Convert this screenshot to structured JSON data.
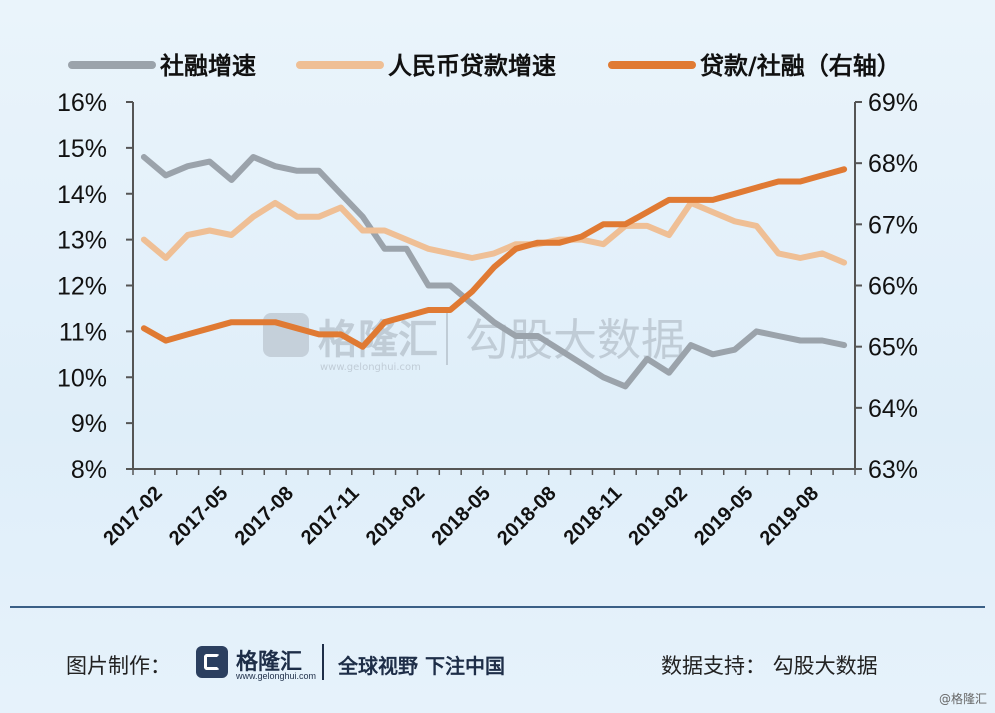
{
  "chart_data": {
    "type": "line",
    "legend_position": "top",
    "grid": false,
    "x_categories": [
      "2017-02",
      "2017-03",
      "2017-04",
      "2017-05",
      "2017-06",
      "2017-07",
      "2017-08",
      "2017-09",
      "2017-10",
      "2017-11",
      "2017-12",
      "2018-01",
      "2018-02",
      "2018-03",
      "2018-04",
      "2018-05",
      "2018-06",
      "2018-07",
      "2018-08",
      "2018-09",
      "2018-10",
      "2018-11",
      "2018-12",
      "2019-01",
      "2019-02",
      "2019-03",
      "2019-04",
      "2019-05",
      "2019-06",
      "2019-07",
      "2019-08",
      "2019-09",
      "2019-10"
    ],
    "x_tick_labels": [
      "2017-02",
      "2017-05",
      "2017-08",
      "2017-11",
      "2018-02",
      "2018-05",
      "2018-08",
      "2018-11",
      "2019-02",
      "2019-05",
      "2019-08"
    ],
    "y_left": {
      "min": 8,
      "max": 16,
      "step": 1,
      "unit": "%"
    },
    "y_right": {
      "min": 63,
      "max": 69,
      "step": 1,
      "unit": "%"
    },
    "series": [
      {
        "name": "社融增速",
        "axis": "left",
        "color": "#9ba3ab",
        "values": [
          14.8,
          14.4,
          14.6,
          14.7,
          14.3,
          14.8,
          14.6,
          14.5,
          14.5,
          14.0,
          13.5,
          12.8,
          12.8,
          12.0,
          12.0,
          11.6,
          11.2,
          10.9,
          10.9,
          10.6,
          10.3,
          10.0,
          9.8,
          10.4,
          10.1,
          10.7,
          10.5,
          10.6,
          11.0,
          10.9,
          10.8,
          10.8,
          10.7
        ]
      },
      {
        "name": "人民币贷款增速",
        "axis": "left",
        "color": "#efbf95",
        "values": [
          13.0,
          12.6,
          13.1,
          13.2,
          13.1,
          13.5,
          13.8,
          13.5,
          13.5,
          13.7,
          13.2,
          13.2,
          13.0,
          12.8,
          12.7,
          12.6,
          12.7,
          12.9,
          12.9,
          13.0,
          13.0,
          12.9,
          13.3,
          13.3,
          13.1,
          13.8,
          13.6,
          13.4,
          13.3,
          12.7,
          12.6,
          12.7,
          12.5
        ]
      },
      {
        "name": "贷款/社融（右轴）",
        "axis": "right",
        "color": "#e07a33",
        "values": [
          65.3,
          65.1,
          65.2,
          65.3,
          65.4,
          65.4,
          65.4,
          65.3,
          65.2,
          65.2,
          65.0,
          65.4,
          65.5,
          65.6,
          65.6,
          65.9,
          66.3,
          66.6,
          66.7,
          66.7,
          66.8,
          67.0,
          67.0,
          67.2,
          67.4,
          67.4,
          67.4,
          67.5,
          67.6,
          67.7,
          67.7,
          67.8,
          67.9
        ]
      }
    ]
  },
  "watermark": {
    "brand": "格隆汇",
    "url": "www.gelonghui.com",
    "source": "勾股大数据"
  },
  "footer": {
    "made_by_label": "图片制作：",
    "brand": "格隆汇",
    "url": "www.gelonghui.com",
    "slogan": "全球视野 下注中国",
    "data_support": "数据支持：  勾股大数据",
    "corner_mark": "@格隆汇"
  },
  "colors": {
    "axis": "#555555",
    "divider": "#3a5f86"
  }
}
